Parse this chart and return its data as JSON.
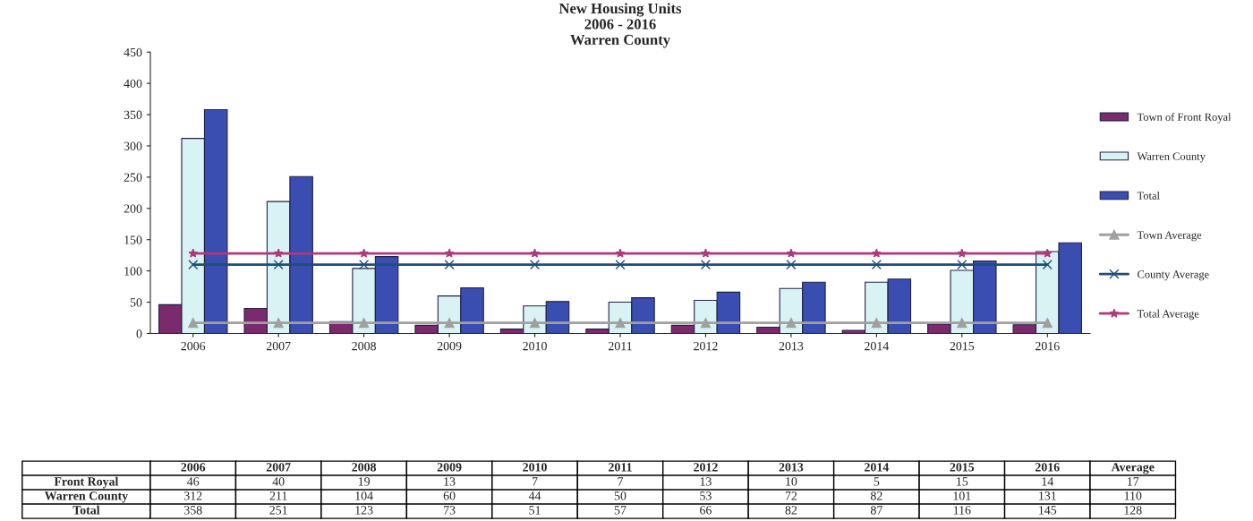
{
  "chart_data": {
    "type": "bar",
    "title": "New Housing Units\n2006 - 2016\nWarren County",
    "categories": [
      "2006",
      "2007",
      "2008",
      "2009",
      "2010",
      "2011",
      "2012",
      "2013",
      "2014",
      "2015",
      "2016"
    ],
    "series": [
      {
        "name": "Town of Front Royal",
        "color": "#7b2a6e",
        "values": [
          46,
          40,
          19,
          13,
          7,
          7,
          13,
          10,
          5,
          15,
          14
        ]
      },
      {
        "name": "Warren County",
        "color": "#d9f3f5",
        "values": [
          312,
          211,
          104,
          60,
          44,
          50,
          53,
          72,
          82,
          101,
          131
        ]
      },
      {
        "name": "Total",
        "color": "#3a4db0",
        "values": [
          358,
          251,
          123,
          73,
          51,
          57,
          66,
          82,
          87,
          116,
          145
        ]
      },
      {
        "name": "Town Average",
        "type": "line",
        "color": "#a0a0a0",
        "marker": "triangle",
        "values": [
          17,
          17,
          17,
          17,
          17,
          17,
          17,
          17,
          17,
          17,
          17
        ],
        "value_labels": [
          null,
          null,
          null,
          null,
          null,
          null,
          null,
          null,
          null,
          null,
          null
        ]
      },
      {
        "name": "County Average",
        "type": "line",
        "color": "#1f4e79",
        "marker": "cross",
        "values": [
          110,
          110,
          110,
          110,
          110,
          110,
          110,
          110,
          110,
          110,
          110
        ],
        "value_labels": [
          null,
          null,
          null,
          null,
          null,
          null,
          null,
          null,
          null,
          null,
          null
        ]
      },
      {
        "name": "Total Average",
        "type": "line",
        "color": "#b03a7a",
        "marker": "star",
        "values": [
          128,
          128,
          128,
          128,
          128,
          128,
          128,
          128,
          128,
          128,
          128
        ],
        "value_labels": [
          null,
          null,
          null,
          null,
          null,
          null,
          null,
          null,
          null,
          null,
          null
        ]
      }
    ],
    "annotations": [
      "Front Royal",
      "Warren County",
      "Total",
      "Average",
      "17",
      "110",
      "128"
    ],
    "ylim": [
      0,
      450
    ],
    "yticks": [
      0,
      50,
      100,
      150,
      200,
      250,
      300,
      350,
      400,
      450
    ],
    "grid": false,
    "legend": "right",
    "data_labels": true
  }
}
